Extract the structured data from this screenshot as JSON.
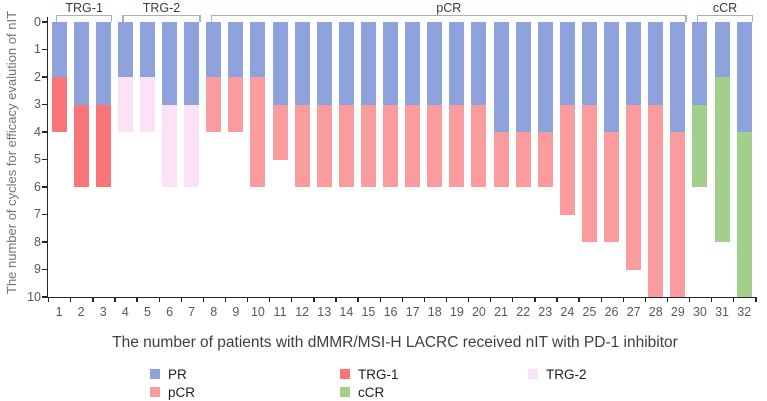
{
  "chart_data": {
    "type": "bar",
    "stacked": true,
    "inverted_y": true,
    "title": "",
    "xlabel": "The number of patients with dMMR/MSI-H LACRC received nIT with PD-1 inhibitor",
    "ylabel": "The number of cycles for efficacy evalution of nIT",
    "ylim": [
      0,
      10
    ],
    "yticks": [
      0,
      1,
      2,
      3,
      4,
      5,
      6,
      7,
      8,
      9,
      10
    ],
    "categories": [
      1,
      2,
      3,
      4,
      5,
      6,
      7,
      8,
      9,
      10,
      11,
      12,
      13,
      14,
      15,
      16,
      17,
      18,
      19,
      20,
      21,
      22,
      23,
      24,
      25,
      26,
      27,
      28,
      29,
      30,
      31,
      32
    ],
    "colors": {
      "PR": "#8ea3db",
      "pCR": "#fa9b9d",
      "TRG-1": "#f87579",
      "TRG-2": "#fbe2f7",
      "cCR": "#a2d08c",
      "bracket": "#9fb0d6",
      "axis": "#262626"
    },
    "groups": [
      {
        "label": "TRG-1",
        "from": 1,
        "to": 3
      },
      {
        "label": "TRG-2",
        "from": 4,
        "to": 7
      },
      {
        "label": "pCR",
        "from": 8,
        "to": 29
      },
      {
        "label": "cCR",
        "from": 30,
        "to": 32
      }
    ],
    "patients": [
      {
        "id": 1,
        "segments": [
          {
            "series": "PR",
            "from": 0,
            "to": 2
          },
          {
            "series": "TRG-1",
            "from": 2,
            "to": 4
          }
        ]
      },
      {
        "id": 2,
        "segments": [
          {
            "series": "PR",
            "from": 0,
            "to": 3
          },
          {
            "series": "TRG-1",
            "from": 3,
            "to": 6
          }
        ]
      },
      {
        "id": 3,
        "segments": [
          {
            "series": "PR",
            "from": 0,
            "to": 3
          },
          {
            "series": "TRG-1",
            "from": 3,
            "to": 6
          }
        ]
      },
      {
        "id": 4,
        "segments": [
          {
            "series": "PR",
            "from": 0,
            "to": 2
          },
          {
            "series": "TRG-2",
            "from": 2,
            "to": 4
          }
        ]
      },
      {
        "id": 5,
        "segments": [
          {
            "series": "PR",
            "from": 0,
            "to": 2
          },
          {
            "series": "TRG-2",
            "from": 2,
            "to": 4
          }
        ]
      },
      {
        "id": 6,
        "segments": [
          {
            "series": "PR",
            "from": 0,
            "to": 3
          },
          {
            "series": "TRG-2",
            "from": 3,
            "to": 6
          }
        ]
      },
      {
        "id": 7,
        "segments": [
          {
            "series": "PR",
            "from": 0,
            "to": 3
          },
          {
            "series": "TRG-2",
            "from": 3,
            "to": 6
          }
        ]
      },
      {
        "id": 8,
        "segments": [
          {
            "series": "PR",
            "from": 0,
            "to": 2
          },
          {
            "series": "pCR",
            "from": 2,
            "to": 4
          }
        ]
      },
      {
        "id": 9,
        "segments": [
          {
            "series": "PR",
            "from": 0,
            "to": 2
          },
          {
            "series": "pCR",
            "from": 2,
            "to": 4
          }
        ]
      },
      {
        "id": 10,
        "segments": [
          {
            "series": "PR",
            "from": 0,
            "to": 2
          },
          {
            "series": "pCR",
            "from": 2,
            "to": 6
          }
        ]
      },
      {
        "id": 11,
        "segments": [
          {
            "series": "PR",
            "from": 0,
            "to": 3
          },
          {
            "series": "pCR",
            "from": 3,
            "to": 5
          }
        ]
      },
      {
        "id": 12,
        "segments": [
          {
            "series": "PR",
            "from": 0,
            "to": 3
          },
          {
            "series": "pCR",
            "from": 3,
            "to": 6
          }
        ]
      },
      {
        "id": 13,
        "segments": [
          {
            "series": "PR",
            "from": 0,
            "to": 3
          },
          {
            "series": "pCR",
            "from": 3,
            "to": 6
          }
        ]
      },
      {
        "id": 14,
        "segments": [
          {
            "series": "PR",
            "from": 0,
            "to": 3
          },
          {
            "series": "pCR",
            "from": 3,
            "to": 6
          }
        ]
      },
      {
        "id": 15,
        "segments": [
          {
            "series": "PR",
            "from": 0,
            "to": 3
          },
          {
            "series": "pCR",
            "from": 3,
            "to": 6
          }
        ]
      },
      {
        "id": 16,
        "segments": [
          {
            "series": "PR",
            "from": 0,
            "to": 3
          },
          {
            "series": "pCR",
            "from": 3,
            "to": 6
          }
        ]
      },
      {
        "id": 17,
        "segments": [
          {
            "series": "PR",
            "from": 0,
            "to": 3
          },
          {
            "series": "pCR",
            "from": 3,
            "to": 6
          }
        ]
      },
      {
        "id": 18,
        "segments": [
          {
            "series": "PR",
            "from": 0,
            "to": 3
          },
          {
            "series": "pCR",
            "from": 3,
            "to": 6
          }
        ]
      },
      {
        "id": 19,
        "segments": [
          {
            "series": "PR",
            "from": 0,
            "to": 3
          },
          {
            "series": "pCR",
            "from": 3,
            "to": 6
          }
        ]
      },
      {
        "id": 20,
        "segments": [
          {
            "series": "PR",
            "from": 0,
            "to": 3
          },
          {
            "series": "pCR",
            "from": 3,
            "to": 6
          }
        ]
      },
      {
        "id": 21,
        "segments": [
          {
            "series": "PR",
            "from": 0,
            "to": 4
          },
          {
            "series": "pCR",
            "from": 4,
            "to": 6
          }
        ]
      },
      {
        "id": 22,
        "segments": [
          {
            "series": "PR",
            "from": 0,
            "to": 4
          },
          {
            "series": "pCR",
            "from": 4,
            "to": 6
          }
        ]
      },
      {
        "id": 23,
        "segments": [
          {
            "series": "PR",
            "from": 0,
            "to": 4
          },
          {
            "series": "pCR",
            "from": 4,
            "to": 6
          }
        ]
      },
      {
        "id": 24,
        "segments": [
          {
            "series": "PR",
            "from": 0,
            "to": 3
          },
          {
            "series": "pCR",
            "from": 3,
            "to": 7
          }
        ]
      },
      {
        "id": 25,
        "segments": [
          {
            "series": "PR",
            "from": 0,
            "to": 3
          },
          {
            "series": "pCR",
            "from": 3,
            "to": 8
          }
        ]
      },
      {
        "id": 26,
        "segments": [
          {
            "series": "PR",
            "from": 0,
            "to": 4
          },
          {
            "series": "pCR",
            "from": 4,
            "to": 8
          }
        ]
      },
      {
        "id": 27,
        "segments": [
          {
            "series": "PR",
            "from": 0,
            "to": 3
          },
          {
            "series": "pCR",
            "from": 3,
            "to": 9
          }
        ]
      },
      {
        "id": 28,
        "segments": [
          {
            "series": "PR",
            "from": 0,
            "to": 3
          },
          {
            "series": "pCR",
            "from": 3,
            "to": 10
          }
        ]
      },
      {
        "id": 29,
        "segments": [
          {
            "series": "PR",
            "from": 0,
            "to": 4
          },
          {
            "series": "pCR",
            "from": 4,
            "to": 10
          }
        ]
      },
      {
        "id": 30,
        "segments": [
          {
            "series": "PR",
            "from": 0,
            "to": 3
          },
          {
            "series": "cCR",
            "from": 3,
            "to": 6
          }
        ]
      },
      {
        "id": 31,
        "segments": [
          {
            "series": "PR",
            "from": 0,
            "to": 2
          },
          {
            "series": "cCR",
            "from": 2,
            "to": 8
          }
        ]
      },
      {
        "id": 32,
        "segments": [
          {
            "series": "PR",
            "from": 0,
            "to": 4
          },
          {
            "series": "cCR",
            "from": 4,
            "to": 10
          }
        ]
      }
    ],
    "legend": {
      "position": "bottom",
      "items": [
        {
          "label": "PR",
          "color": "#8ea3db"
        },
        {
          "label": "TRG-1",
          "color": "#f87579"
        },
        {
          "label": "TRG-2",
          "color": "#fbe2f7"
        },
        {
          "label": "pCR",
          "color": "#fa9b9d"
        },
        {
          "label": "cCR",
          "color": "#a2d08c"
        }
      ]
    }
  }
}
